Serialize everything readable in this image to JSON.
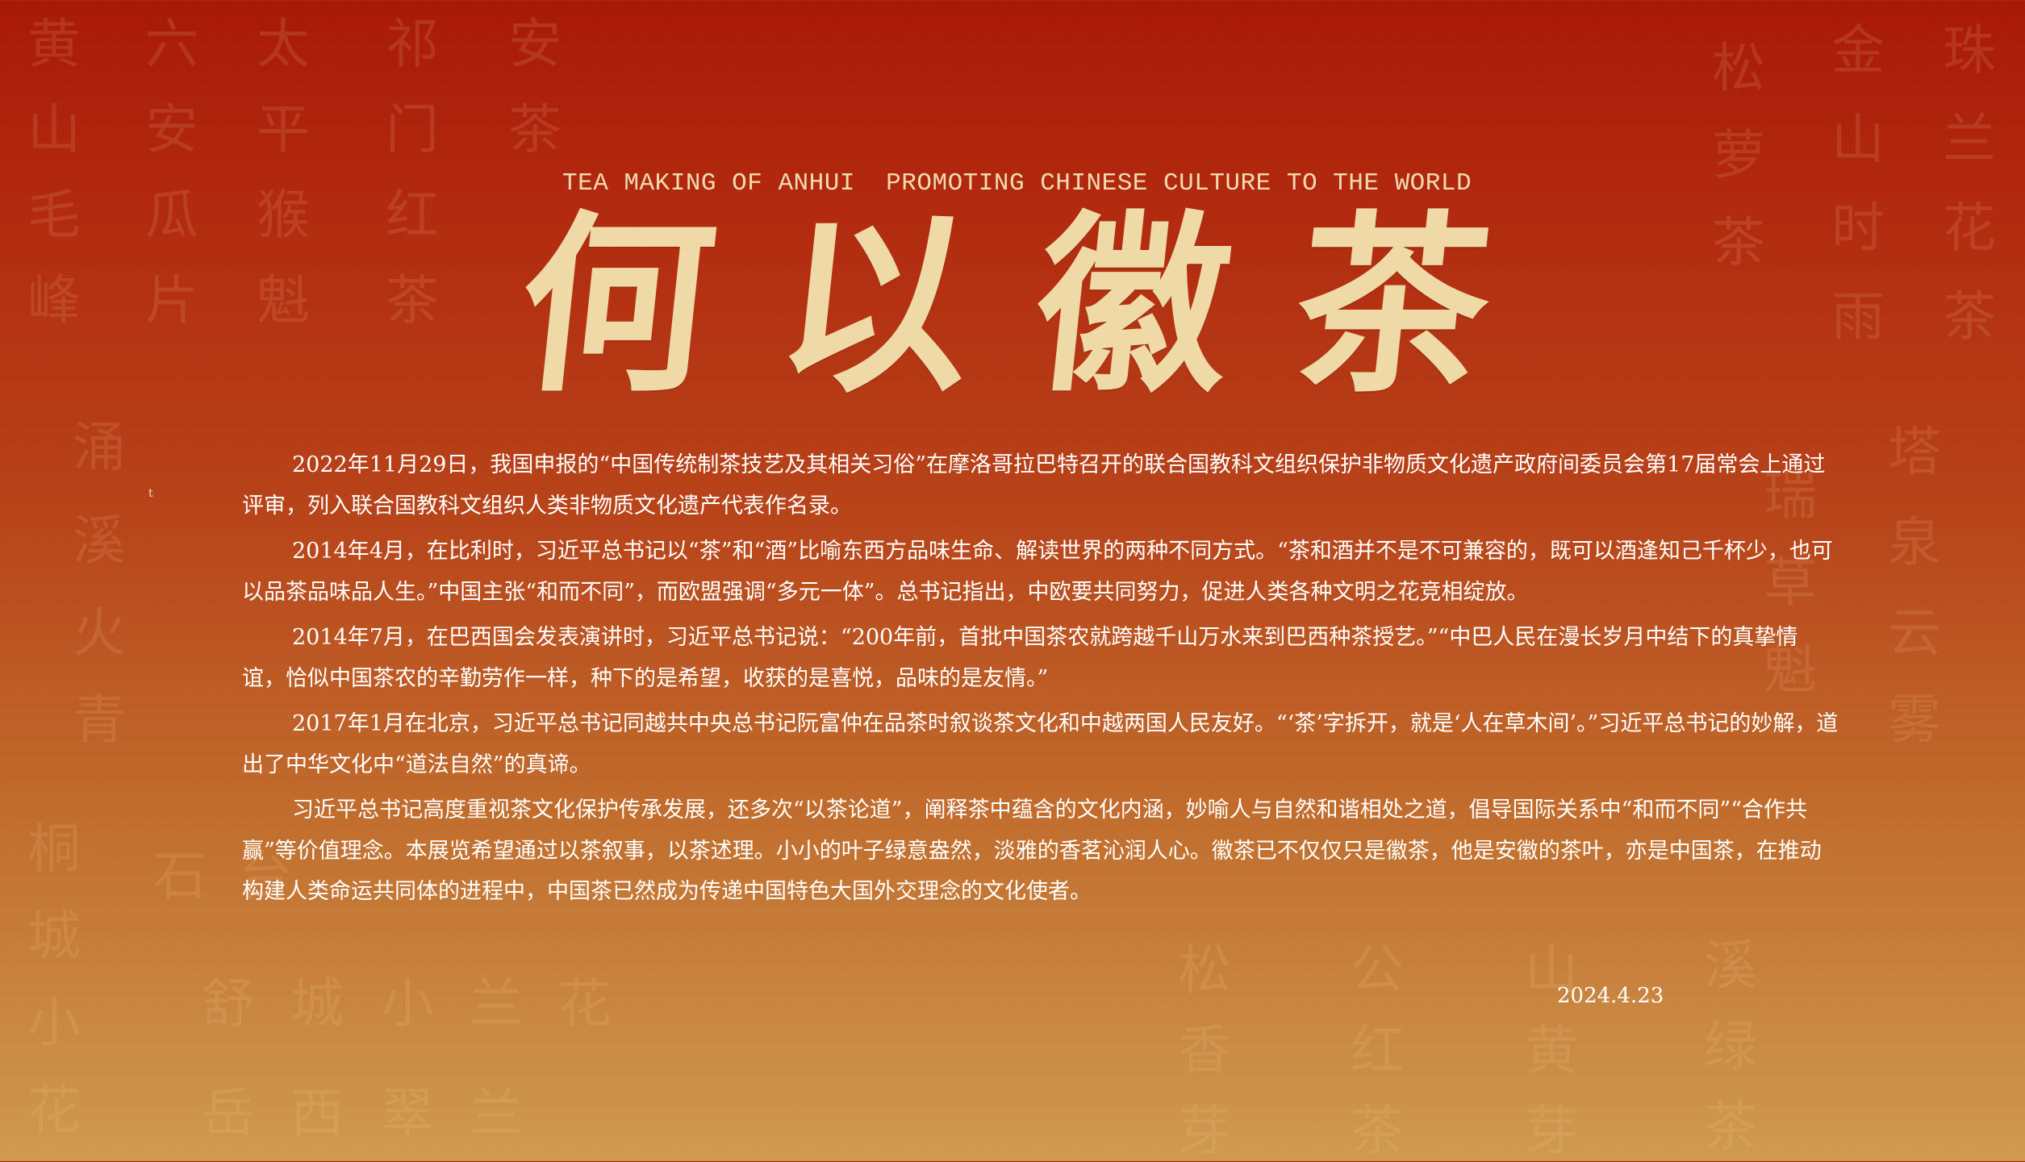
{
  "header": {
    "subtitle": "TEA MAKING OF ANHUI  PROMOTING CHINESE CULTURE TO THE WORLD",
    "title_chars": [
      "何",
      "以",
      "徽",
      "茶"
    ]
  },
  "paragraphs": [
    "2022年11月29日，我国申报的“中国传统制茶技艺及其相关习俗”在摩洛哥拉巴特召开的联合国教科文组织保护非物质文化遗产政府间委员会第17届常会上通过评审，列入联合国教科文组织人类非物质文化遗产代表作名录。",
    "2014年4月，在比利时，习近平总书记以“茶”和“酒”比喻东西方品味生命、解读世界的两种不同方式。“茶和酒并不是不可兼容的，既可以酒逢知己千杯少，也可以品茶品味品人生。”中国主张“和而不同”，而欧盟强调“多元一体”。总书记指出，中欧要共同努力，促进人类各种文明之花竞相绽放。",
    "2014年7月，在巴西国会发表演讲时，习近平总书记说：“200年前，首批中国茶农就跨越千山万水来到巴西种茶授艺。”“中巴人民在漫长岁月中结下的真挚情谊，恰似中国茶农的辛勤劳作一样，种下的是希望，收获的是喜悦，品味的是友情。”",
    "2017年1月在北京，习近平总书记同越共中央总书记阮富仲在品茶时叙谈茶文化和中越两国人民友好。“‘茶’字拆开，就是‘人在草木间’。”习近平总书记的妙解，道出了中华文化中“道法自然”的真谛。",
    "习近平总书记高度重视茶文化保护传承发展，还多次“以茶论道”，阐释茶中蕴含的文化内涵，妙喻人与自然和谐相处之道，倡导国际关系中“和而不同”“合作共赢”等价值理念。本展览希望通过以茶叙事，以茶述理。小小的叶子绿意盎然，淡雅的香茗沁润人心。徽茶已不仅仅只是徽茶，他是安徽的茶叶，亦是中国茶，在推动构建人类命运共同体的进程中，中国茶已然成为传递中国特色大国外交理念的文化使者。"
  ],
  "date": "2024.4.23",
  "stray_mark": "t",
  "background_tea_names": [
    "黄山毛峰",
    "六安瓜片",
    "太平猴魁",
    "祁门红茶",
    "安茶",
    "松萝茶",
    "金山时雨",
    "珠兰花茶",
    "涌溪火青",
    "塔泉云雾",
    "瑞草魁",
    "桐城小花",
    "石台",
    "舒城小兰花",
    "岳西翠兰",
    "松萝香芽",
    "公红茶",
    "黄山黄芽",
    "溪绿茶"
  ],
  "colors": {
    "background_top": "#a81a08",
    "background_bottom": "#cf9a4f",
    "title_gold": "#efd9a7",
    "body_text": "#ffffff"
  }
}
